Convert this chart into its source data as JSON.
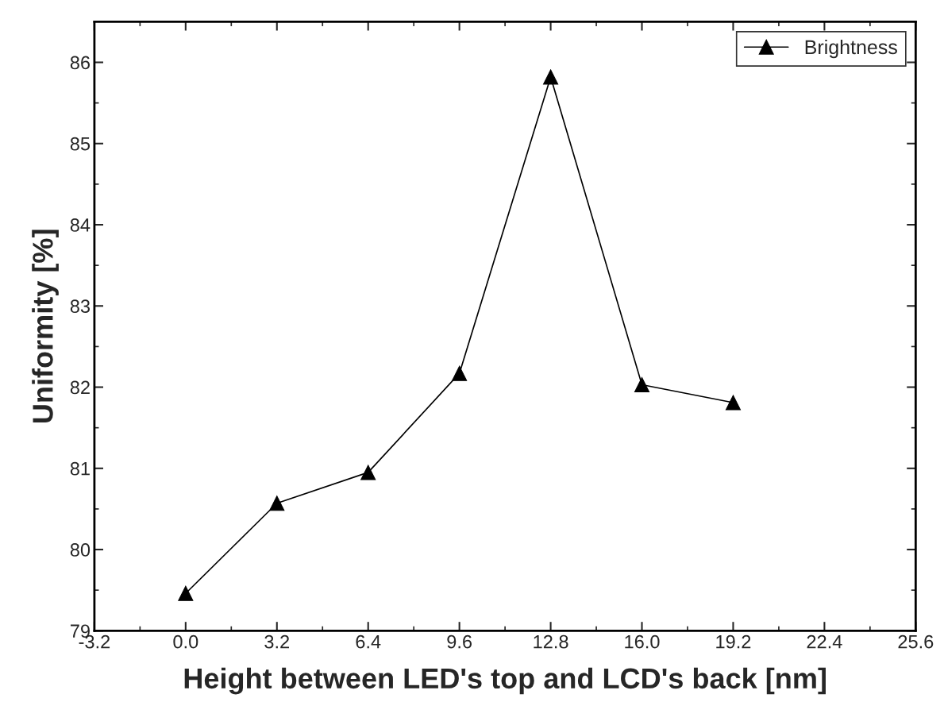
{
  "chart_data": {
    "type": "line",
    "xlabel": "Height between LED's top and LCD's back [nm]",
    "ylabel": "Uniformity [%]",
    "x": [
      0.0,
      3.2,
      6.4,
      9.6,
      12.8,
      16.0,
      19.2
    ],
    "series": [
      {
        "name": "Brightness",
        "color": "#000000",
        "values": [
          79.46,
          80.57,
          80.95,
          82.17,
          85.82,
          82.03,
          81.81
        ]
      }
    ],
    "marker": "triangle",
    "line_style": "solid",
    "legend": "top right",
    "grid": false,
    "xlim": [
      -3.2,
      25.6
    ],
    "xticks": [
      {
        "value": -3.2,
        "label": "-3.2"
      },
      {
        "value": 0,
        "label": "0.0"
      },
      {
        "value": 3.2,
        "label": "3.2"
      },
      {
        "value": 6.4,
        "label": "6.4"
      },
      {
        "value": 9.6,
        "label": "9.6"
      },
      {
        "value": 12.8,
        "label": "12.8"
      },
      {
        "value": 16.0,
        "label": "16.0"
      },
      {
        "value": 19.2,
        "label": "19.2"
      },
      {
        "value": 22.4,
        "label": "22.4"
      },
      {
        "value": 25.6,
        "label": "25.6"
      }
    ],
    "ylim": [
      79,
      86.5
    ],
    "yticks": [
      79,
      80,
      81,
      82,
      83,
      84,
      85,
      86
    ]
  }
}
